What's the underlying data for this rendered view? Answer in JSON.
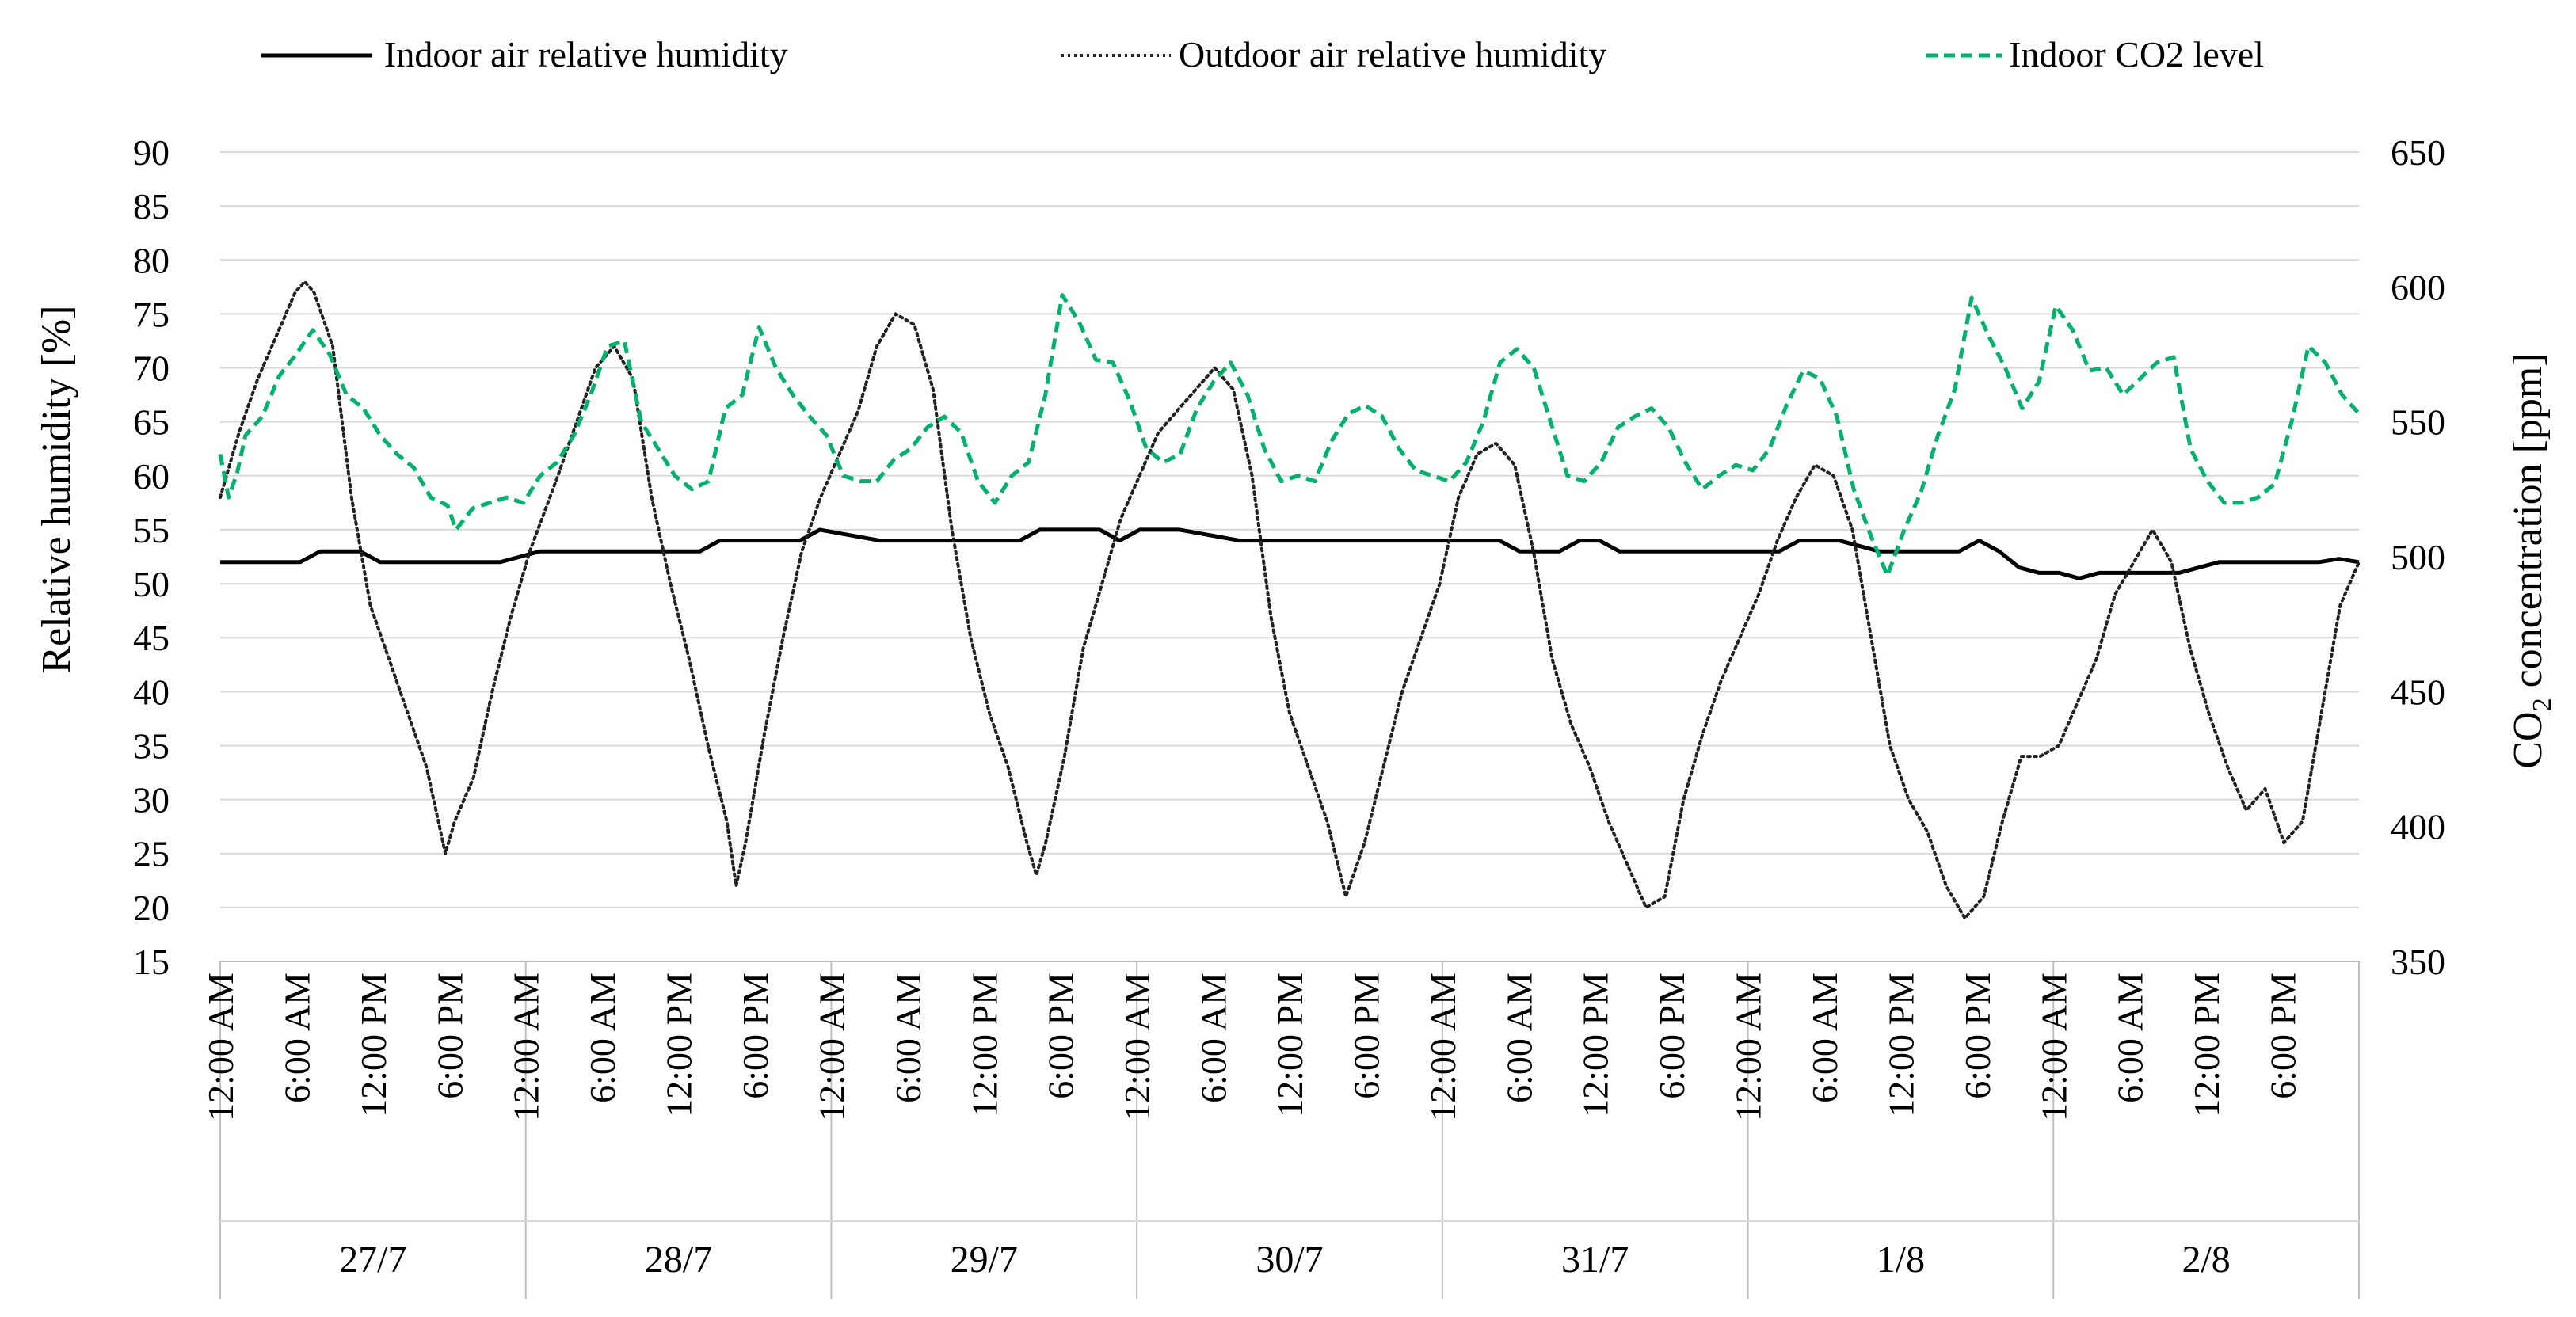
{
  "chart_data": {
    "type": "line",
    "title": "",
    "ylabel": "Relative humidity [%]",
    "y2label_prefix": "CO",
    "y2label_sub": "2",
    "y2label_suffix": " concentration [ppm]",
    "ylim": [
      15,
      90
    ],
    "y_ticks": [
      "90",
      "85",
      "80",
      "75",
      "70",
      "65",
      "60",
      "55",
      "50",
      "45",
      "40",
      "35",
      "30",
      "25",
      "20",
      "15"
    ],
    "y2lim": [
      350,
      650
    ],
    "y2_ticks": [
      "650",
      "600",
      "550",
      "500",
      "450",
      "400",
      "350"
    ],
    "x_hour_labels": [
      "12:00 AM",
      "6:00 AM",
      "12:00 PM",
      "6:00 PM"
    ],
    "days": [
      "27/7",
      "28/7",
      "29/7",
      "30/7",
      "31/7",
      "1/8",
      "2/8"
    ],
    "hours_total": 168,
    "grid": true,
    "legend_position": "top",
    "colors": {
      "indoor_rh": "#000000",
      "outdoor_rh": "#222222",
      "co2": "#00b26b",
      "grid": "#d9d9d9"
    },
    "series": [
      {
        "name": "Indoor air relative humidity",
        "axis": "left",
        "style": "solid",
        "points": [
          [
            0,
            52
          ],
          [
            8,
            52
          ],
          [
            10,
            53
          ],
          [
            14,
            53
          ],
          [
            16,
            52
          ],
          [
            28,
            52
          ],
          [
            30,
            52.5
          ],
          [
            32,
            53
          ],
          [
            48,
            53
          ],
          [
            50,
            54
          ],
          [
            58,
            54
          ],
          [
            60,
            55
          ],
          [
            66,
            54
          ],
          [
            80,
            54
          ],
          [
            82,
            55
          ],
          [
            88,
            55
          ],
          [
            90,
            54
          ],
          [
            92,
            55
          ],
          [
            96,
            55
          ],
          [
            102,
            54
          ],
          [
            128,
            54
          ],
          [
            130,
            53
          ],
          [
            134,
            53
          ],
          [
            136,
            54
          ],
          [
            138,
            54
          ],
          [
            140,
            53
          ],
          [
            156,
            53
          ],
          [
            158,
            54
          ],
          [
            162,
            54
          ],
          [
            166,
            53
          ],
          [
            174,
            53
          ],
          [
            176,
            54
          ],
          [
            178,
            53
          ],
          [
            180,
            51.5
          ],
          [
            182,
            51
          ],
          [
            184,
            51
          ],
          [
            186,
            50.5
          ],
          [
            188,
            51
          ],
          [
            196,
            51
          ],
          [
            198,
            51.5
          ],
          [
            200,
            52
          ],
          [
            210,
            52
          ],
          [
            212,
            52.3
          ],
          [
            214,
            52
          ]
        ]
      },
      {
        "name": "Outdoor air relative humidity",
        "axis": "left",
        "style": "dotted",
        "points": [
          [
            0,
            58
          ],
          [
            2,
            64
          ],
          [
            4,
            69
          ],
          [
            6,
            73
          ],
          [
            8,
            77
          ],
          [
            9,
            78
          ],
          [
            10,
            77
          ],
          [
            12,
            72
          ],
          [
            14,
            58
          ],
          [
            16,
            48
          ],
          [
            18,
            43
          ],
          [
            20,
            38
          ],
          [
            22,
            33
          ],
          [
            23,
            29
          ],
          [
            24,
            25
          ],
          [
            25,
            28
          ],
          [
            27,
            32
          ],
          [
            29,
            40
          ],
          [
            31,
            47
          ],
          [
            33,
            53
          ],
          [
            36,
            60
          ],
          [
            38,
            65
          ],
          [
            40,
            70
          ],
          [
            42,
            72
          ],
          [
            44,
            69
          ],
          [
            46,
            58
          ],
          [
            48,
            50
          ],
          [
            50,
            43
          ],
          [
            52,
            35
          ],
          [
            54,
            28
          ],
          [
            55,
            22
          ],
          [
            56,
            26
          ],
          [
            58,
            36
          ],
          [
            60,
            45
          ],
          [
            62,
            53
          ],
          [
            64,
            58
          ],
          [
            66,
            62
          ],
          [
            68,
            66
          ],
          [
            70,
            72
          ],
          [
            72,
            75
          ],
          [
            74,
            74
          ],
          [
            76,
            68
          ],
          [
            78,
            55
          ],
          [
            80,
            45
          ],
          [
            82,
            38
          ],
          [
            84,
            33
          ],
          [
            86,
            26
          ],
          [
            87,
            23
          ],
          [
            88,
            26
          ],
          [
            90,
            34
          ],
          [
            92,
            44
          ],
          [
            94,
            50
          ],
          [
            96,
            56
          ],
          [
            98,
            60
          ],
          [
            100,
            64
          ],
          [
            102,
            66
          ],
          [
            104,
            68
          ],
          [
            106,
            70
          ],
          [
            108,
            68
          ],
          [
            110,
            60
          ],
          [
            112,
            47
          ],
          [
            114,
            38
          ],
          [
            116,
            33
          ],
          [
            118,
            28
          ],
          [
            120,
            21
          ],
          [
            122,
            26
          ],
          [
            124,
            33
          ],
          [
            126,
            40
          ],
          [
            128,
            45
          ],
          [
            130,
            50
          ],
          [
            132,
            58
          ],
          [
            134,
            62
          ],
          [
            136,
            63
          ],
          [
            138,
            61
          ],
          [
            140,
            53
          ],
          [
            142,
            43
          ],
          [
            144,
            37
          ],
          [
            146,
            33
          ],
          [
            148,
            28
          ],
          [
            150,
            24
          ],
          [
            152,
            20
          ],
          [
            154,
            21
          ],
          [
            156,
            30
          ],
          [
            158,
            36
          ],
          [
            160,
            41
          ],
          [
            162,
            45
          ],
          [
            164,
            49
          ],
          [
            166,
            54
          ],
          [
            168,
            58
          ],
          [
            170,
            61
          ],
          [
            172,
            60
          ],
          [
            174,
            55
          ],
          [
            176,
            45
          ],
          [
            178,
            35
          ],
          [
            180,
            30
          ],
          [
            182,
            27
          ],
          [
            184,
            22
          ],
          [
            186,
            19
          ],
          [
            188,
            21
          ],
          [
            190,
            28
          ],
          [
            192,
            34
          ],
          [
            194,
            34
          ],
          [
            196,
            35
          ],
          [
            198,
            39
          ],
          [
            200,
            43
          ],
          [
            202,
            49
          ],
          [
            204,
            52
          ],
          [
            206,
            55
          ],
          [
            208,
            52
          ],
          [
            210,
            44
          ],
          [
            212,
            38
          ],
          [
            214,
            33
          ],
          [
            216,
            29
          ],
          [
            218,
            31
          ],
          [
            220,
            26
          ],
          [
            222,
            28
          ],
          [
            224,
            38
          ],
          [
            226,
            48
          ],
          [
            228,
            52
          ]
        ]
      },
      {
        "name": "Indoor CO2 level",
        "axis": "right",
        "style": "dashed",
        "points": [
          [
            0,
            538
          ],
          [
            1,
            522
          ],
          [
            2,
            531
          ],
          [
            3,
            545
          ],
          [
            5,
            552
          ],
          [
            7,
            567
          ],
          [
            9,
            575
          ],
          [
            11,
            584
          ],
          [
            13,
            575
          ],
          [
            15,
            560
          ],
          [
            17,
            555
          ],
          [
            19,
            545
          ],
          [
            21,
            538
          ],
          [
            23,
            533
          ],
          [
            25,
            522
          ],
          [
            27,
            519
          ],
          [
            28,
            510
          ],
          [
            30,
            518
          ],
          [
            32,
            520
          ],
          [
            34,
            522
          ],
          [
            36,
            520
          ],
          [
            38,
            530
          ],
          [
            40,
            535
          ],
          [
            42,
            545
          ],
          [
            44,
            560
          ],
          [
            46,
            578
          ],
          [
            48,
            580
          ],
          [
            50,
            550
          ],
          [
            52,
            540
          ],
          [
            54,
            530
          ],
          [
            56,
            525
          ],
          [
            58,
            528
          ],
          [
            60,
            555
          ],
          [
            62,
            560
          ],
          [
            64,
            585
          ],
          [
            66,
            570
          ],
          [
            68,
            560
          ],
          [
            70,
            552
          ],
          [
            72,
            545
          ],
          [
            74,
            530
          ],
          [
            76,
            528
          ],
          [
            78,
            528
          ],
          [
            80,
            536
          ],
          [
            82,
            540
          ],
          [
            84,
            548
          ],
          [
            86,
            552
          ],
          [
            88,
            546
          ],
          [
            90,
            528
          ],
          [
            92,
            520
          ],
          [
            94,
            530
          ],
          [
            96,
            535
          ],
          [
            98,
            560
          ],
          [
            100,
            597
          ],
          [
            102,
            587
          ],
          [
            104,
            573
          ],
          [
            106,
            572
          ],
          [
            108,
            558
          ],
          [
            110,
            540
          ],
          [
            112,
            535
          ],
          [
            114,
            538
          ],
          [
            116,
            555
          ],
          [
            118,
            565
          ],
          [
            120,
            572
          ],
          [
            122,
            560
          ],
          [
            124,
            540
          ],
          [
            126,
            528
          ],
          [
            128,
            530
          ],
          [
            130,
            528
          ],
          [
            132,
            543
          ],
          [
            134,
            553
          ],
          [
            136,
            556
          ],
          [
            138,
            552
          ],
          [
            140,
            540
          ],
          [
            142,
            532
          ],
          [
            144,
            530
          ],
          [
            146,
            528
          ],
          [
            148,
            535
          ],
          [
            150,
            550
          ],
          [
            152,
            572
          ],
          [
            154,
            577
          ],
          [
            156,
            570
          ],
          [
            158,
            550
          ],
          [
            160,
            530
          ],
          [
            162,
            528
          ],
          [
            164,
            535
          ],
          [
            166,
            548
          ],
          [
            168,
            552
          ],
          [
            170,
            555
          ],
          [
            172,
            548
          ],
          [
            174,
            535
          ],
          [
            176,
            525
          ],
          [
            178,
            530
          ],
          [
            180,
            534
          ],
          [
            182,
            532
          ],
          [
            184,
            540
          ],
          [
            186,
            556
          ],
          [
            188,
            569
          ],
          [
            190,
            566
          ],
          [
            192,
            552
          ],
          [
            194,
            525
          ],
          [
            196,
            508
          ],
          [
            198,
            493
          ],
          [
            200,
            510
          ],
          [
            202,
            524
          ],
          [
            204,
            545
          ],
          [
            206,
            562
          ],
          [
            208,
            596
          ],
          [
            210,
            582
          ],
          [
            212,
            570
          ],
          [
            214,
            555
          ],
          [
            216,
            565
          ],
          [
            218,
            593
          ],
          [
            220,
            584
          ],
          [
            222,
            569
          ],
          [
            224,
            570
          ],
          [
            226,
            560
          ],
          [
            228,
            566
          ],
          [
            230,
            572
          ],
          [
            232,
            574
          ],
          [
            234,
            540
          ],
          [
            236,
            528
          ],
          [
            238,
            520
          ],
          [
            240,
            520
          ],
          [
            242,
            522
          ],
          [
            244,
            527
          ],
          [
            246,
            550
          ],
          [
            248,
            578
          ],
          [
            250,
            572
          ],
          [
            252,
            560
          ],
          [
            254,
            553
          ]
        ]
      }
    ]
  }
}
